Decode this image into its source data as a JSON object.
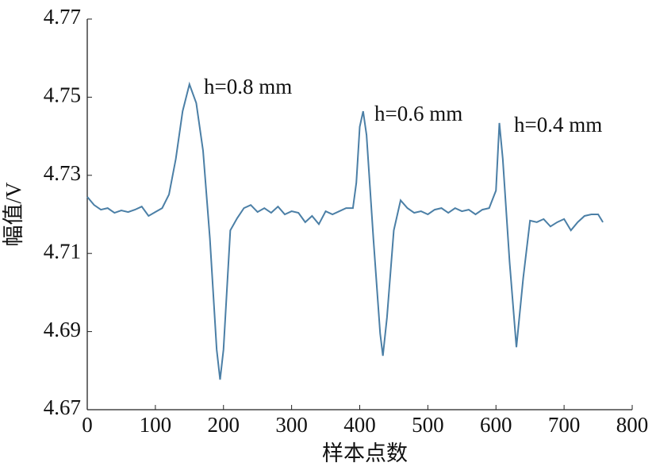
{
  "chart_data": {
    "type": "line",
    "x_label": "样本点数",
    "y_label": "幅值/V",
    "annotations": [
      "h=0.8 mm",
      "h=0.6 mm",
      "h=0.4 mm"
    ],
    "annotation_color": "#b22a3a",
    "x": [
      0,
      10,
      20,
      30,
      40,
      50,
      60,
      70,
      80,
      90,
      100,
      110,
      120,
      130,
      140,
      150,
      160,
      170,
      180,
      190,
      195,
      200,
      210,
      220,
      230,
      240,
      250,
      260,
      270,
      280,
      290,
      300,
      310,
      320,
      330,
      340,
      350,
      360,
      370,
      380,
      390,
      395,
      400,
      405,
      410,
      420,
      430,
      434,
      440,
      450,
      460,
      470,
      480,
      490,
      500,
      510,
      520,
      530,
      540,
      550,
      560,
      570,
      580,
      590,
      600,
      605,
      610,
      620,
      630,
      640,
      650,
      660,
      670,
      680,
      690,
      700,
      710,
      720,
      730,
      740,
      750,
      757
    ],
    "series": [
      {
        "color": "#4b7fa6",
        "values": [
          4.7245,
          4.7224,
          4.7212,
          4.7216,
          4.7204,
          4.721,
          4.7206,
          4.7212,
          4.722,
          4.7196,
          4.7206,
          4.7216,
          4.7251,
          4.7342,
          4.7464,
          4.7533,
          4.7485,
          4.7363,
          4.7139,
          4.6854,
          4.6777,
          4.6854,
          4.7159,
          4.719,
          4.7216,
          4.7224,
          4.7206,
          4.7216,
          4.7204,
          4.722,
          4.72,
          4.7208,
          4.7204,
          4.718,
          4.7196,
          4.7175,
          4.7208,
          4.72,
          4.7208,
          4.7216,
          4.7216,
          4.7281,
          4.7424,
          4.7464,
          4.7403,
          4.7139,
          4.6895,
          4.6838,
          4.6936,
          4.7159,
          4.7236,
          4.7216,
          4.7204,
          4.7208,
          4.72,
          4.7212,
          4.7216,
          4.7204,
          4.7216,
          4.7208,
          4.7212,
          4.72,
          4.7212,
          4.7216,
          4.7261,
          4.7434,
          4.7342,
          4.7078,
          4.686,
          4.7037,
          4.7184,
          4.718,
          4.7188,
          4.7169,
          4.718,
          4.7188,
          4.7159,
          4.718,
          4.7196,
          4.72,
          4.72,
          4.718
        ]
      }
    ],
    "xlim": [
      0,
      800
    ],
    "xticks": [
      0,
      100,
      200,
      300,
      400,
      500,
      600,
      700,
      800
    ],
    "ylim": [
      4.67,
      4.77
    ],
    "yticks": [
      4.67,
      4.69,
      4.71,
      4.73,
      4.75,
      4.77
    ],
    "grid": false
  }
}
